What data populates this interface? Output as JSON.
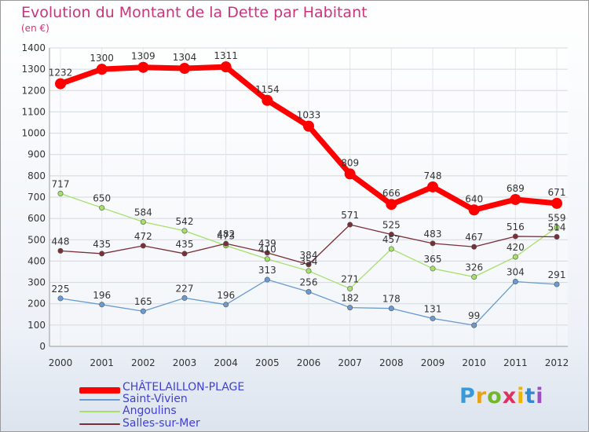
{
  "title": "Evolution du Montant de la Dette par Habitant",
  "subtitle": "(en €)",
  "logo": [
    "P",
    "r",
    "o",
    "x",
    "i",
    "t",
    "i"
  ],
  "chart_data": {
    "type": "line",
    "x": [
      "2000",
      "2001",
      "2002",
      "2003",
      "2004",
      "2005",
      "2006",
      "2007",
      "2008",
      "2009",
      "2010",
      "2011",
      "2012"
    ],
    "ylim": [
      0,
      1400
    ],
    "yticks": [
      0,
      100,
      200,
      300,
      400,
      500,
      600,
      700,
      800,
      900,
      1000,
      1100,
      1200,
      1300,
      1400
    ],
    "grid": true,
    "legend_position": "bottom-left",
    "series": [
      {
        "name": "CHÂTELAILLON-PLAGE",
        "color": "#ff0000",
        "values": [
          1232,
          1300,
          1309,
          1304,
          1311,
          1154,
          1033,
          809,
          666,
          748,
          640,
          689,
          671
        ]
      },
      {
        "name": "Saint-Vivien",
        "color": "#6a9bd0",
        "values": [
          225,
          196,
          165,
          227,
          196,
          313,
          256,
          182,
          178,
          131,
          99,
          304,
          291
        ]
      },
      {
        "name": "Angoulins",
        "color": "#a6e06a",
        "values": [
          717,
          650,
          584,
          542,
          473,
          410,
          354,
          271,
          457,
          365,
          326,
          420,
          559
        ]
      },
      {
        "name": "Salles-sur-Mer",
        "color": "#7a2f36",
        "values": [
          448,
          435,
          472,
          435,
          482,
          439,
          384,
          571,
          525,
          483,
          467,
          516,
          514
        ]
      }
    ]
  }
}
